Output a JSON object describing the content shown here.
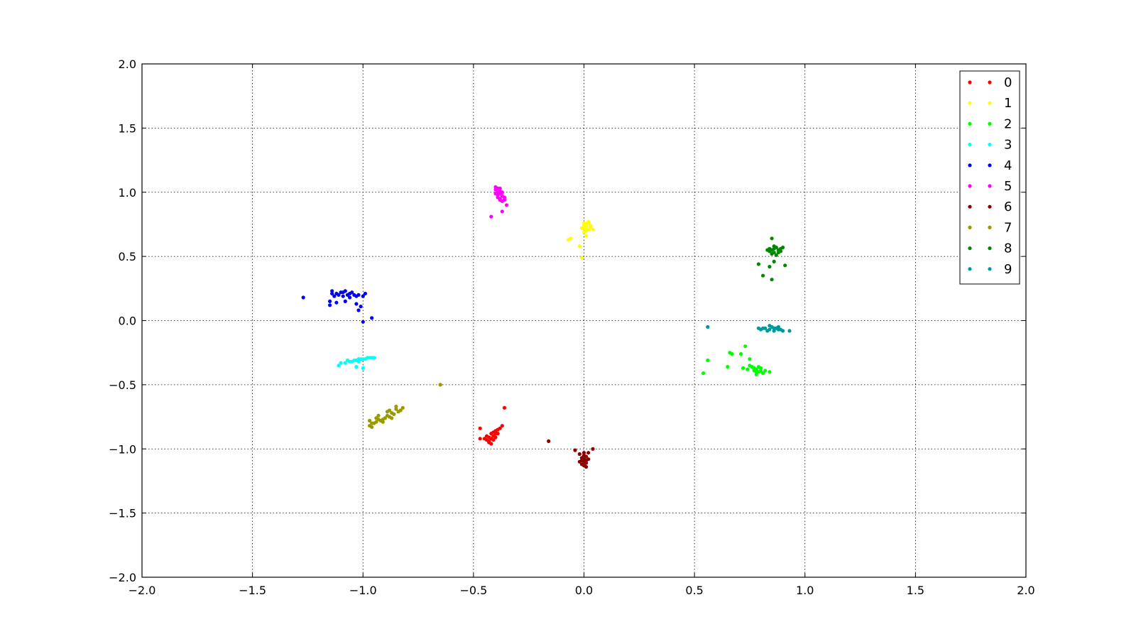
{
  "chart_data": {
    "type": "scatter",
    "title": "",
    "xlabel": "",
    "ylabel": "",
    "xlim": [
      -2.0,
      2.0
    ],
    "ylim": [
      -2.0,
      2.0
    ],
    "xticks": [
      "−2.0",
      "−1.5",
      "−1.0",
      "−0.5",
      "0.0",
      "0.5",
      "1.0",
      "1.5",
      "2.0"
    ],
    "yticks": [
      "−2.0",
      "−1.5",
      "−1.0",
      "−0.5",
      "0.0",
      "0.5",
      "1.0",
      "1.5",
      "2.0"
    ],
    "grid": true,
    "legend_position": "top-right",
    "series": [
      {
        "name": "0",
        "color": "#ff0000",
        "points": [
          [
            -0.43,
            -0.94
          ],
          [
            -0.42,
            -0.92
          ],
          [
            -0.41,
            -0.9
          ],
          [
            -0.4,
            -0.88
          ],
          [
            -0.42,
            -0.88
          ],
          [
            -0.44,
            -0.93
          ],
          [
            -0.41,
            -0.87
          ],
          [
            -0.4,
            -0.86
          ],
          [
            -0.39,
            -0.85
          ],
          [
            -0.43,
            -0.91
          ],
          [
            -0.42,
            -0.96
          ],
          [
            -0.44,
            -0.9
          ],
          [
            -0.41,
            -0.93
          ],
          [
            -0.39,
            -0.88
          ],
          [
            -0.47,
            -0.84
          ],
          [
            -0.47,
            -0.92
          ],
          [
            -0.37,
            -0.82
          ],
          [
            -0.36,
            -0.68
          ],
          [
            -0.38,
            -0.84
          ],
          [
            -0.45,
            -0.92
          ],
          [
            -0.43,
            -0.95
          ],
          [
            -0.4,
            -0.91
          ]
        ]
      },
      {
        "name": "1",
        "color": "#ffff00",
        "points": [
          [
            0.0,
            0.72
          ],
          [
            0.01,
            0.75
          ],
          [
            0.02,
            0.77
          ],
          [
            0.0,
            0.74
          ],
          [
            0.03,
            0.73
          ],
          [
            0.02,
            0.71
          ],
          [
            0.01,
            0.7
          ],
          [
            -0.01,
            0.72
          ],
          [
            0.04,
            0.71
          ],
          [
            0.0,
            0.76
          ],
          [
            0.02,
            0.76
          ],
          [
            0.01,
            0.73
          ],
          [
            -0.07,
            0.63
          ],
          [
            -0.06,
            0.64
          ],
          [
            -0.02,
            0.58
          ],
          [
            -0.01,
            0.49
          ],
          [
            0.01,
            0.66
          ],
          [
            0.03,
            0.74
          ],
          [
            0.0,
            0.69
          ]
        ]
      },
      {
        "name": "2",
        "color": "#00ff00",
        "points": [
          [
            0.77,
            -0.37
          ],
          [
            0.78,
            -0.38
          ],
          [
            0.8,
            -0.39
          ],
          [
            0.79,
            -0.4
          ],
          [
            0.81,
            -0.41
          ],
          [
            0.76,
            -0.36
          ],
          [
            0.75,
            -0.35
          ],
          [
            0.78,
            -0.4
          ],
          [
            0.8,
            -0.37
          ],
          [
            0.82,
            -0.39
          ],
          [
            0.84,
            -0.4
          ],
          [
            0.77,
            -0.39
          ],
          [
            0.74,
            -0.38
          ],
          [
            0.79,
            -0.36
          ],
          [
            0.72,
            -0.37
          ],
          [
            0.66,
            -0.25
          ],
          [
            0.67,
            -0.26
          ],
          [
            0.73,
            -0.2
          ],
          [
            0.71,
            -0.26
          ],
          [
            0.65,
            -0.36
          ],
          [
            0.56,
            -0.31
          ],
          [
            0.54,
            -0.41
          ],
          [
            0.75,
            -0.3
          ],
          [
            0.78,
            -0.42
          ]
        ]
      },
      {
        "name": "3",
        "color": "#00ffff",
        "points": [
          [
            -1.06,
            -0.32
          ],
          [
            -1.04,
            -0.31
          ],
          [
            -1.02,
            -0.3
          ],
          [
            -1.0,
            -0.3
          ],
          [
            -0.98,
            -0.29
          ],
          [
            -1.08,
            -0.33
          ],
          [
            -1.05,
            -0.32
          ],
          [
            -1.03,
            -0.31
          ],
          [
            -1.01,
            -0.3
          ],
          [
            -0.99,
            -0.3
          ],
          [
            -0.97,
            -0.29
          ],
          [
            -0.96,
            -0.29
          ],
          [
            -1.1,
            -0.33
          ],
          [
            -1.11,
            -0.35
          ],
          [
            -1.07,
            -0.31
          ],
          [
            -1.03,
            -0.36
          ],
          [
            -1.0,
            -0.37
          ],
          [
            -1.02,
            -0.32
          ],
          [
            -0.95,
            -0.29
          ]
        ]
      },
      {
        "name": "4",
        "color": "#0000ff",
        "points": [
          [
            -1.12,
            0.21
          ],
          [
            -1.1,
            0.22
          ],
          [
            -1.08,
            0.23
          ],
          [
            -1.06,
            0.21
          ],
          [
            -1.04,
            0.2
          ],
          [
            -1.02,
            0.2
          ],
          [
            -1.0,
            0.19
          ],
          [
            -1.09,
            0.19
          ],
          [
            -1.07,
            0.2
          ],
          [
            -1.05,
            0.22
          ],
          [
            -1.03,
            0.19
          ],
          [
            -1.11,
            0.2
          ],
          [
            -1.14,
            0.23
          ],
          [
            -1.14,
            0.21
          ],
          [
            -1.13,
            0.19
          ],
          [
            -1.15,
            0.15
          ],
          [
            -1.15,
            0.12
          ],
          [
            -1.12,
            0.14
          ],
          [
            -1.08,
            0.15
          ],
          [
            -1.03,
            0.13
          ],
          [
            -1.01,
            0.11
          ],
          [
            -1.02,
            0.08
          ],
          [
            -1.0,
            -0.01
          ],
          [
            -0.96,
            0.02
          ],
          [
            -1.27,
            0.18
          ],
          [
            -0.99,
            0.21
          ],
          [
            -1.06,
            0.18
          ],
          [
            -1.09,
            0.22
          ]
        ]
      },
      {
        "name": "5",
        "color": "#ff00ff",
        "points": [
          [
            -0.39,
            1.0
          ],
          [
            -0.38,
            0.99
          ],
          [
            -0.37,
            0.97
          ],
          [
            -0.38,
            0.95
          ],
          [
            -0.39,
            0.98
          ],
          [
            -0.4,
            1.02
          ],
          [
            -0.38,
            1.03
          ],
          [
            -0.36,
            0.96
          ],
          [
            -0.37,
            1.0
          ],
          [
            -0.39,
            0.96
          ],
          [
            -0.38,
            0.94
          ],
          [
            -0.36,
            0.94
          ],
          [
            -0.4,
            0.99
          ],
          [
            -0.37,
            0.93
          ],
          [
            -0.35,
            0.9
          ],
          [
            -0.37,
            0.85
          ],
          [
            -0.42,
            0.81
          ],
          [
            -0.4,
            1.04
          ],
          [
            -0.39,
            1.03
          ],
          [
            -0.38,
            1.01
          ]
        ]
      },
      {
        "name": "6",
        "color": "#8b0000",
        "points": [
          [
            0.0,
            -1.05
          ],
          [
            0.0,
            -1.08
          ],
          [
            -0.01,
            -1.07
          ],
          [
            0.01,
            -1.09
          ],
          [
            0.0,
            -1.1
          ],
          [
            -0.01,
            -1.12
          ],
          [
            0.01,
            -1.11
          ],
          [
            0.0,
            -1.13
          ],
          [
            0.01,
            -1.06
          ],
          [
            -0.02,
            -1.04
          ],
          [
            0.0,
            -1.03
          ],
          [
            0.02,
            -1.08
          ],
          [
            -0.01,
            -1.09
          ],
          [
            0.01,
            -1.14
          ],
          [
            -0.04,
            -1.01
          ],
          [
            0.04,
            -1.0
          ],
          [
            -0.16,
            -0.94
          ],
          [
            0.02,
            -1.03
          ],
          [
            -0.02,
            -1.1
          ]
        ]
      },
      {
        "name": "7",
        "color": "#999900",
        "points": [
          [
            -0.96,
            -0.8
          ],
          [
            -0.94,
            -0.79
          ],
          [
            -0.92,
            -0.78
          ],
          [
            -0.9,
            -0.76
          ],
          [
            -0.88,
            -0.75
          ],
          [
            -0.86,
            -0.73
          ],
          [
            -0.84,
            -0.71
          ],
          [
            -0.83,
            -0.7
          ],
          [
            -0.97,
            -0.82
          ],
          [
            -0.95,
            -0.8
          ],
          [
            -0.93,
            -0.77
          ],
          [
            -0.91,
            -0.77
          ],
          [
            -0.89,
            -0.74
          ],
          [
            -0.87,
            -0.72
          ],
          [
            -0.85,
            -0.69
          ],
          [
            -0.97,
            -0.78
          ],
          [
            -0.96,
            -0.83
          ],
          [
            -0.93,
            -0.74
          ],
          [
            -0.89,
            -0.71
          ],
          [
            -0.85,
            -0.67
          ],
          [
            -0.82,
            -0.68
          ],
          [
            -0.65,
            -0.5
          ],
          [
            -0.91,
            -0.79
          ],
          [
            -0.87,
            -0.76
          ],
          [
            -0.94,
            -0.76
          ],
          [
            -0.88,
            -0.7
          ]
        ]
      },
      {
        "name": "8",
        "color": "#008800",
        "points": [
          [
            0.85,
            0.55
          ],
          [
            0.86,
            0.56
          ],
          [
            0.87,
            0.57
          ],
          [
            0.88,
            0.55
          ],
          [
            0.86,
            0.53
          ],
          [
            0.84,
            0.54
          ],
          [
            0.85,
            0.52
          ],
          [
            0.87,
            0.51
          ],
          [
            0.89,
            0.56
          ],
          [
            0.9,
            0.57
          ],
          [
            0.86,
            0.58
          ],
          [
            0.88,
            0.53
          ],
          [
            0.84,
            0.56
          ],
          [
            0.85,
            0.64
          ],
          [
            0.79,
            0.44
          ],
          [
            0.81,
            0.35
          ],
          [
            0.85,
            0.32
          ],
          [
            0.84,
            0.42
          ],
          [
            0.86,
            0.46
          ],
          [
            0.91,
            0.43
          ],
          [
            0.83,
            0.55
          ],
          [
            0.89,
            0.54
          ]
        ]
      },
      {
        "name": "9",
        "color": "#009999",
        "points": [
          [
            0.8,
            -0.07
          ],
          [
            0.82,
            -0.06
          ],
          [
            0.84,
            -0.07
          ],
          [
            0.86,
            -0.06
          ],
          [
            0.88,
            -0.07
          ],
          [
            0.83,
            -0.08
          ],
          [
            0.85,
            -0.05
          ],
          [
            0.87,
            -0.06
          ],
          [
            0.89,
            -0.07
          ],
          [
            0.81,
            -0.06
          ],
          [
            0.84,
            -0.04
          ],
          [
            0.86,
            -0.08
          ],
          [
            0.9,
            -0.08
          ],
          [
            0.93,
            -0.08
          ],
          [
            0.56,
            -0.05
          ],
          [
            0.79,
            -0.06
          ],
          [
            0.88,
            -0.05
          ]
        ]
      }
    ]
  }
}
